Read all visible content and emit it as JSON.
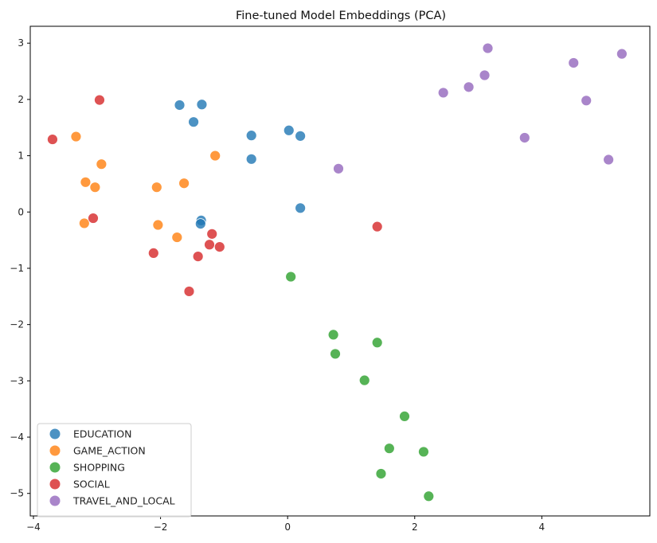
{
  "chart_data": {
    "type": "scatter",
    "title": "Fine-tuned Model Embeddings (PCA)",
    "xlabel": "",
    "ylabel": "",
    "xlim": [
      -4.05,
      5.7
    ],
    "ylim": [
      -5.4,
      3.3
    ],
    "x_ticks": [
      -4,
      -2,
      0,
      2,
      4
    ],
    "y_ticks": [
      -5,
      -4,
      -3,
      -2,
      -1,
      0,
      1,
      2,
      3
    ],
    "x_tick_labels": [
      "−4",
      "−2",
      "0",
      "2",
      "4"
    ],
    "y_tick_labels": [
      "−5",
      "−4",
      "−3",
      "−2",
      "−1",
      "0",
      "1",
      "2",
      "3"
    ],
    "grid": false,
    "legend_position": "lower-left",
    "series": [
      {
        "name": "EDUCATION",
        "color": "#1f77b4",
        "points": [
          [
            -1.7,
            1.9
          ],
          [
            -1.35,
            1.91
          ],
          [
            -1.48,
            1.6
          ],
          [
            -0.57,
            1.36
          ],
          [
            0.02,
            1.45
          ],
          [
            0.2,
            1.35
          ],
          [
            -0.57,
            0.94
          ],
          [
            0.2,
            0.07
          ],
          [
            -1.36,
            -0.15
          ],
          [
            -1.37,
            -0.21
          ]
        ]
      },
      {
        "name": "GAME_ACTION",
        "color": "#ff7f0e",
        "points": [
          [
            -3.33,
            1.34
          ],
          [
            -1.14,
            1.0
          ],
          [
            -2.93,
            0.85
          ],
          [
            -3.18,
            0.53
          ],
          [
            -3.03,
            0.44
          ],
          [
            -2.06,
            0.44
          ],
          [
            -1.63,
            0.51
          ],
          [
            -3.2,
            -0.2
          ],
          [
            -2.04,
            -0.23
          ],
          [
            -1.74,
            -0.45
          ]
        ]
      },
      {
        "name": "SHOPPING",
        "color": "#2ca02c",
        "points": [
          [
            0.05,
            -1.15
          ],
          [
            0.72,
            -2.18
          ],
          [
            0.75,
            -2.52
          ],
          [
            1.41,
            -2.32
          ],
          [
            1.21,
            -2.99
          ],
          [
            1.84,
            -3.63
          ],
          [
            1.6,
            -4.2
          ],
          [
            2.14,
            -4.26
          ],
          [
            1.47,
            -4.65
          ],
          [
            2.22,
            -5.05
          ]
        ]
      },
      {
        "name": "SOCIAL",
        "color": "#d62728",
        "points": [
          [
            -2.96,
            1.99
          ],
          [
            -3.7,
            1.29
          ],
          [
            -3.06,
            -0.11
          ],
          [
            -1.19,
            -0.39
          ],
          [
            -1.23,
            -0.58
          ],
          [
            -1.07,
            -0.62
          ],
          [
            -2.11,
            -0.73
          ],
          [
            -1.41,
            -0.79
          ],
          [
            -1.55,
            -1.41
          ],
          [
            1.41,
            -0.26
          ]
        ]
      },
      {
        "name": "TRAVEL_AND_LOCAL",
        "color": "#9467bd",
        "points": [
          [
            3.15,
            2.91
          ],
          [
            5.26,
            2.81
          ],
          [
            4.5,
            2.65
          ],
          [
            3.1,
            2.43
          ],
          [
            2.85,
            2.22
          ],
          [
            2.45,
            2.12
          ],
          [
            4.7,
            1.98
          ],
          [
            3.73,
            1.32
          ],
          [
            5.05,
            0.93
          ],
          [
            0.8,
            0.77
          ]
        ]
      }
    ]
  }
}
